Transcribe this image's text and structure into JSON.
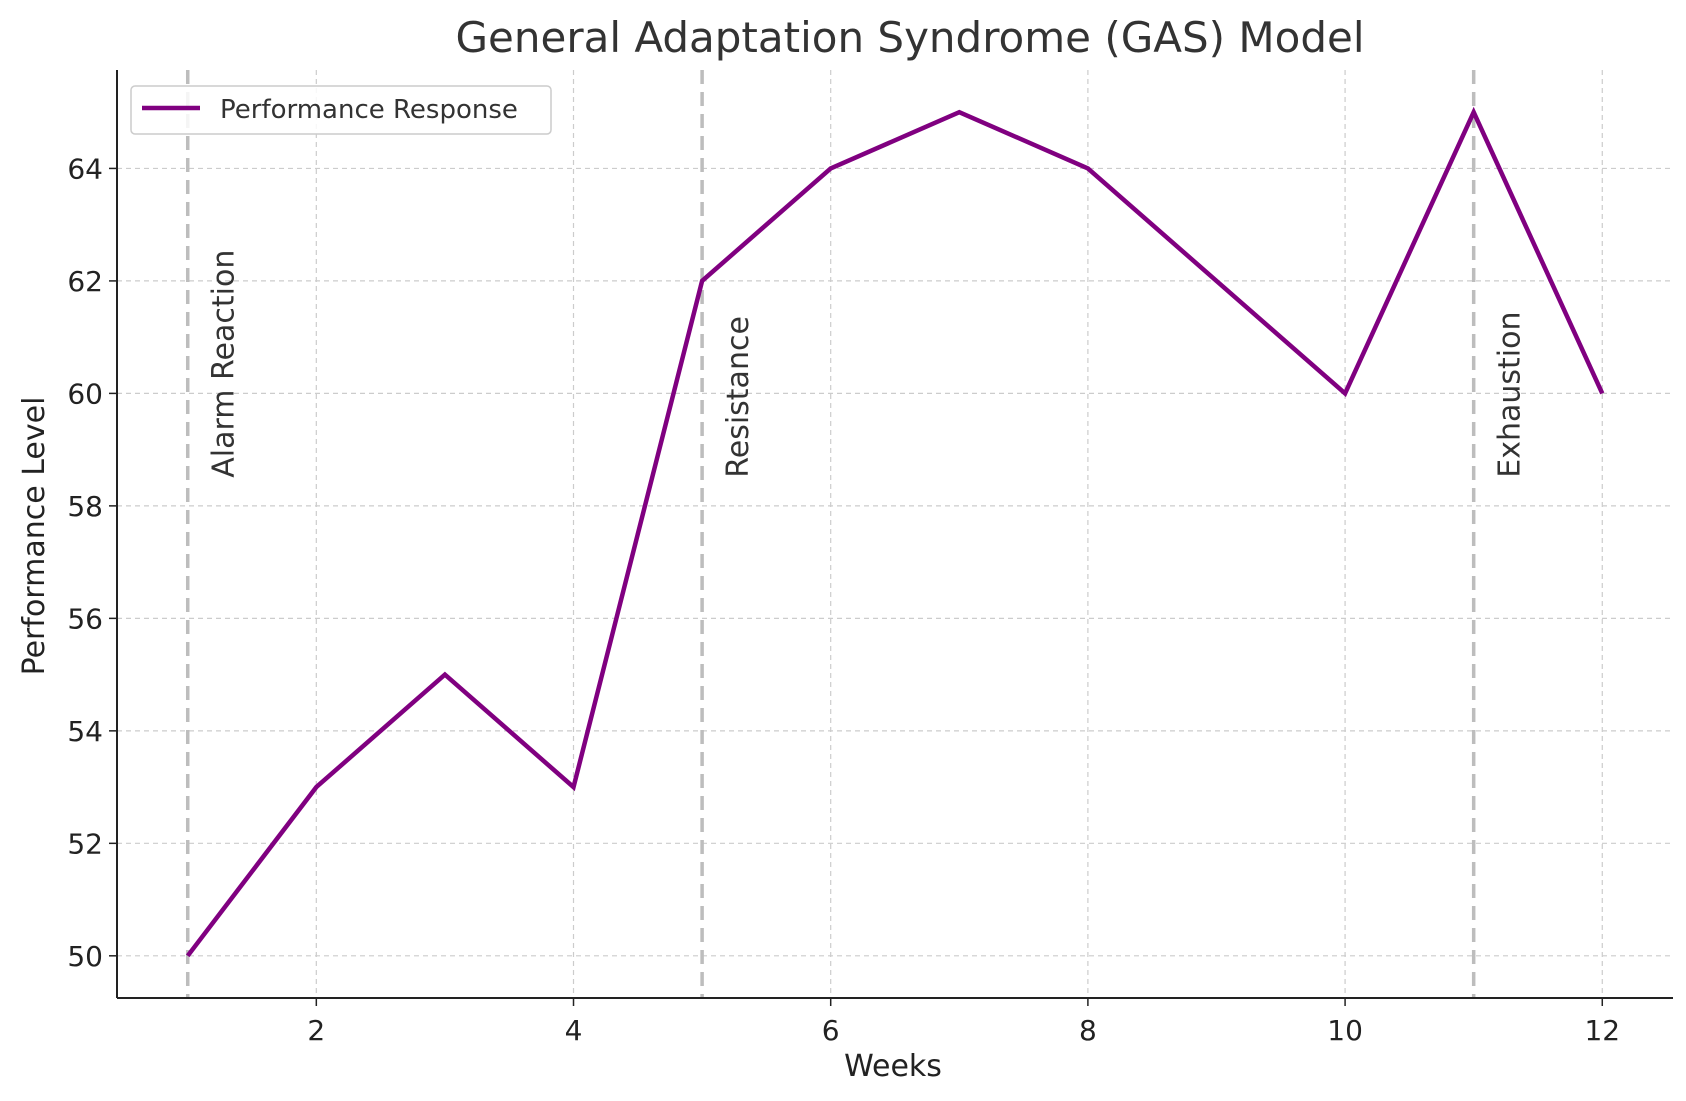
{
  "chart_data": {
    "type": "line",
    "title": "General Adaptation Syndrome (GAS) Model",
    "xlabel": "Weeks",
    "ylabel": "Performance Level",
    "xlim": [
      0.45,
      12.55
    ],
    "ylim": [
      49.25,
      65.75
    ],
    "x_ticks": [
      2,
      4,
      6,
      8,
      10,
      12
    ],
    "y_ticks": [
      50,
      52,
      54,
      56,
      58,
      60,
      62,
      64
    ],
    "grid": true,
    "legend_position": "top-left",
    "series": [
      {
        "name": "Performance Response",
        "color": "#800080",
        "x": [
          1,
          2,
          3,
          4,
          5,
          6,
          7,
          8,
          9,
          10,
          11,
          12
        ],
        "y": [
          50,
          53,
          55,
          53,
          62,
          64,
          65,
          64,
          62,
          60,
          65,
          60
        ]
      }
    ],
    "phases": [
      {
        "label": "Alarm Reaction",
        "x": 1
      },
      {
        "label": "Resistance",
        "x": 5
      },
      {
        "label": "Exhaustion",
        "x": 11
      }
    ],
    "phase_line_color": "#bdbdbd",
    "grid_color": "#cccccc"
  }
}
